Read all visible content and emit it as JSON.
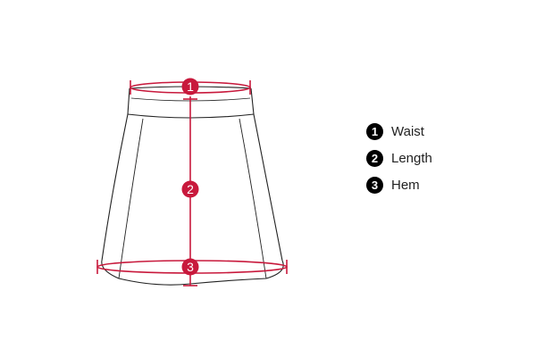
{
  "diagram": {
    "markers": [
      {
        "number": "1",
        "label": "Waist"
      },
      {
        "number": "2",
        "label": "Length"
      },
      {
        "number": "3",
        "label": "Hem"
      }
    ]
  },
  "colors": {
    "accent": "#c8193c",
    "outline": "#222222",
    "legend_bullet": "#000000"
  }
}
